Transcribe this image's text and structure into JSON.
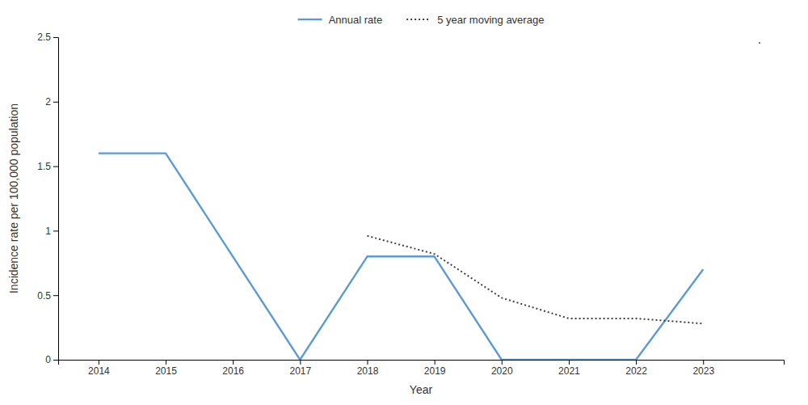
{
  "chart_data": {
    "type": "line",
    "xlabel": "Year",
    "ylabel": "Incidence rate per 100,000 population",
    "series": [
      {
        "name": "Annual rate",
        "color": "#5B9BD5",
        "line_style": "solid",
        "x": [
          2014,
          2015,
          2016,
          2017,
          2018,
          2019,
          2020,
          2021,
          2022,
          2023
        ],
        "values": [
          1.6,
          1.6,
          0.8,
          0.0,
          0.8,
          0.8,
          0.0,
          0.0,
          0.0,
          0.7
        ]
      },
      {
        "name": "5 year moving average",
        "color": "#404040",
        "line_style": "dotted",
        "x": [
          2018,
          2019,
          2020,
          2021,
          2022,
          2023
        ],
        "values": [
          0.96,
          0.82,
          0.48,
          0.32,
          0.32,
          0.28
        ]
      }
    ],
    "xlim": [
      2013.4,
      2024.2
    ],
    "xticks": [
      2014,
      2015,
      2016,
      2017,
      2018,
      2019,
      2020,
      2021,
      2022,
      2023
    ],
    "ylim": [
      0,
      2.5
    ],
    "yticks": [
      0,
      0.5,
      1,
      1.5,
      2,
      2.5
    ],
    "grid": false,
    "legend": "upper center",
    "annotations": [
      {
        "text": "."
      }
    ]
  }
}
